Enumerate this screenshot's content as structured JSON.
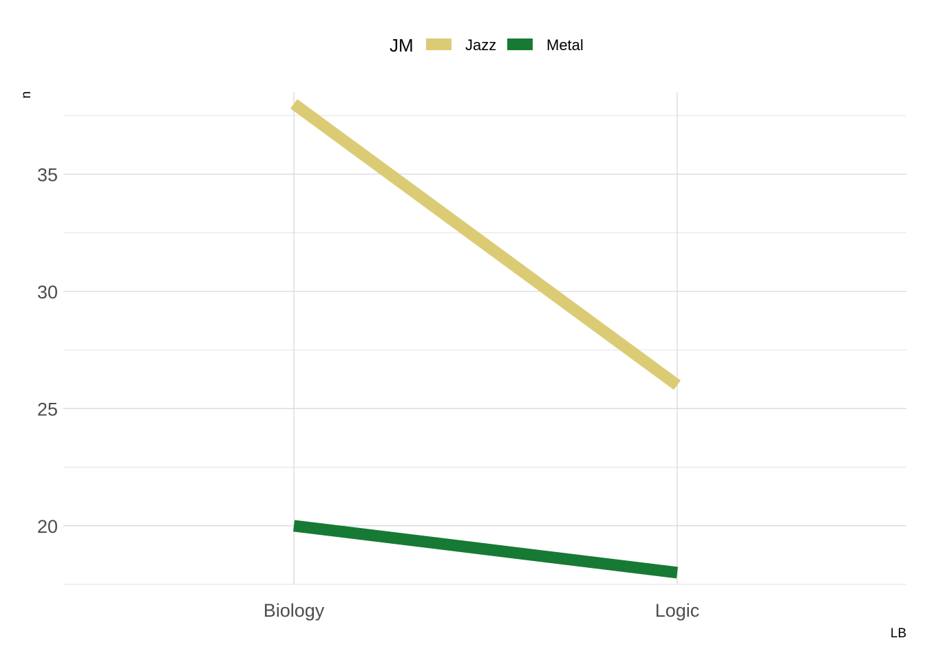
{
  "chart_data": {
    "type": "line",
    "categories": [
      "Biology",
      "Logic"
    ],
    "series": [
      {
        "name": "Jazz",
        "values": [
          38,
          26
        ],
        "color": "#DCCB75"
      },
      {
        "name": "Metal",
        "values": [
          20,
          18
        ],
        "color": "#167A34"
      }
    ],
    "xlabel": "LB",
    "ylabel": "n",
    "ylim": [
      17.5,
      38.5
    ],
    "yticks": [
      20,
      25,
      30,
      35
    ],
    "grid": true,
    "legend": {
      "title": "JM",
      "position": "top"
    }
  }
}
